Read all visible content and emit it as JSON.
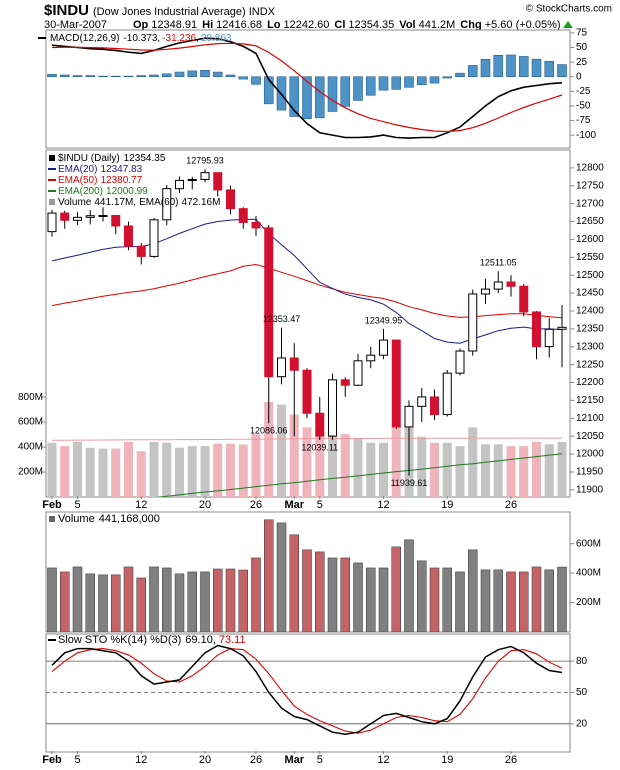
{
  "header": {
    "symbol": "$INDU",
    "name": "(Dow Jones Industrial Average) INDX",
    "date": "30-Mar-2007",
    "quote": [
      [
        "Op",
        "12348.91"
      ],
      [
        "Hi",
        "12416.68"
      ],
      [
        "Lo",
        "12242.60"
      ],
      [
        "Cl",
        "12354.35"
      ],
      [
        "Vol",
        "441.2M"
      ],
      [
        "Chg",
        "+5.60 (+0.05%)"
      ]
    ],
    "credit": "© StockCharts.com"
  },
  "separator": ",",
  "chart_data": [
    {
      "type": "macd",
      "title": "MACD(12,26,9)",
      "ylim": [
        -122,
        80
      ],
      "yticks": [
        -100,
        -75,
        -50,
        -25,
        0,
        25,
        50,
        75
      ],
      "series": [
        {
          "color": "#000000",
          "values": [
            54,
            52,
            50,
            48,
            47,
            45,
            42,
            40,
            45,
            52,
            58,
            62,
            66,
            65,
            60,
            52,
            40,
            -5,
            -30,
            -58,
            -80,
            -96,
            -100,
            -104,
            -104,
            -103,
            -100,
            -104,
            -105,
            -104,
            -104,
            -96,
            -86,
            -68,
            -50,
            -34,
            -24,
            -18,
            -15,
            -12,
            -10.373
          ]
        },
        {
          "color": "#e00000",
          "values": [
            50,
            50.4,
            50.3,
            49.8,
            49.3,
            48.4,
            47.1,
            45.7,
            45.6,
            46.9,
            49.1,
            51.7,
            54.6,
            56.7,
            57.3,
            56.2,
            53,
            41.4,
            27.1,
            10.1,
            -8,
            -25.6,
            -40.5,
            -53.2,
            -63.4,
            -71.3,
            -77,
            -82.4,
            -86.9,
            -90.3,
            -93.1,
            -93.7,
            -92.1,
            -87.3,
            -79.8,
            -70.7,
            -61.3,
            -52.7,
            -45.1,
            -38.5,
            -31.236
          ]
        },
        {
          "color": "#4d93c8",
          "style": "histogram",
          "values": [
            4,
            3,
            2,
            2,
            1,
            1,
            1,
            2,
            3,
            5,
            8,
            10,
            11,
            8,
            3,
            -4,
            -13,
            -46.4,
            -57.1,
            -68.1,
            -72,
            -70.4,
            -59.5,
            -50.8,
            -40.6,
            -31.7,
            -23,
            -21.6,
            -18.1,
            -13.7,
            -10.9,
            -2.3,
            6.1,
            19.3,
            29.8,
            36.7,
            37.3,
            34.7,
            30.1,
            26.5,
            20.863
          ]
        }
      ]
    },
    {
      "type": "candlestick",
      "name": "$INDU (Daily)",
      "categories": [
        "Feb",
        null,
        "5",
        null,
        null,
        null,
        null,
        "12",
        null,
        null,
        null,
        null,
        "20",
        null,
        null,
        null,
        "26",
        null,
        null,
        "Mar",
        null,
        "5",
        null,
        null,
        null,
        null,
        "12",
        null,
        null,
        null,
        null,
        "19",
        null,
        null,
        null,
        null,
        "26",
        null,
        null,
        null,
        null
      ],
      "open": [
        12621.77,
        12673.68,
        12653.49,
        12661.74,
        12666.31,
        12666.87,
        12637.63,
        12580.83,
        12552.55,
        12654.85,
        12741.86,
        12765.01,
        12767.57,
        12786.64,
        12738.41,
        12686.02,
        12647.48,
        12632.26,
        12216.24,
        12268.63,
        12234.34,
        12114.1,
        12050.41,
        12207.59,
        12192.45,
        12260.7,
        12276.32,
        12318.62,
        12075.96,
        12133.4,
        12159.68,
        12110.41,
        12226.17,
        12288.1,
        12447.52,
        12461.14,
        12481.01,
        12469.07,
        12397.29,
        12300.36,
        12348.91
      ],
      "high": [
        12683,
        12680,
        12676,
        12682,
        12690,
        12668,
        12650,
        12590,
        12660,
        12752,
        12776,
        12775,
        12795.93,
        12786,
        12750,
        12690,
        12665,
        12640,
        12353.47,
        12310,
        12240,
        12160,
        12225,
        12215,
        12280,
        12300,
        12349.95,
        12320,
        12150,
        12185,
        12180,
        12235,
        12295,
        12460,
        12490,
        12511.05,
        12500,
        12475,
        12400,
        12380,
        12416.68
      ],
      "low": [
        12608,
        12630,
        12640,
        12642,
        12650,
        12615,
        12570,
        12530,
        12548,
        12640,
        12730,
        12740,
        12760,
        12720,
        12670,
        12630,
        12610,
        12086.06,
        12195,
        12050,
        12100,
        12039.11,
        12040,
        12160,
        12190,
        12240,
        12265,
        12070,
        11939.61,
        12090,
        12095,
        12105,
        12220,
        12275,
        12420,
        12450,
        12440,
        12385,
        12265,
        12270,
        12242.6
      ],
      "close": [
        12673.68,
        12653.49,
        12661.74,
        12666.31,
        12666.87,
        12637.63,
        12580.83,
        12552.55,
        12654.85,
        12741.86,
        12765.01,
        12767.57,
        12786.64,
        12738.41,
        12686.02,
        12647.48,
        12632.26,
        12216.24,
        12268.63,
        12234.34,
        12114.1,
        12050.41,
        12207.59,
        12192.45,
        12260.7,
        12276.32,
        12318.62,
        12075.96,
        12133.4,
        12159.68,
        12110.41,
        12226.17,
        12288.1,
        12447.52,
        12461.14,
        12481.01,
        12469.07,
        12397.29,
        12300.36,
        12348.75,
        12354.35
      ],
      "high_labels": [
        null,
        null,
        null,
        null,
        null,
        null,
        null,
        null,
        null,
        null,
        null,
        null,
        "12795.93",
        null,
        null,
        null,
        null,
        null,
        "12353.47",
        null,
        null,
        null,
        null,
        null,
        null,
        null,
        "12349.95",
        null,
        null,
        null,
        null,
        null,
        null,
        null,
        null,
        "12511.05",
        null,
        null,
        null,
        null,
        null
      ],
      "low_labels": [
        null,
        null,
        null,
        null,
        null,
        null,
        null,
        null,
        null,
        null,
        null,
        null,
        null,
        null,
        null,
        null,
        null,
        "12086.06",
        null,
        null,
        null,
        "12039.11",
        null,
        null,
        null,
        null,
        null,
        null,
        "11939.61",
        null,
        null,
        null,
        null,
        null,
        null,
        null,
        null,
        null,
        null,
        null,
        null
      ],
      "up_color": "#ffffff",
      "down_color": "#d2102f",
      "ylim": [
        11880,
        12850
      ],
      "yticks": [
        11900,
        11950,
        12000,
        12050,
        12100,
        12150,
        12200,
        12250,
        12300,
        12350,
        12400,
        12450,
        12500,
        12550,
        12600,
        12650,
        12700,
        12750,
        12800
      ],
      "overlays": [
        {
          "name": "EMA(20)",
          "color": "#1a1a8c",
          "values": [
            12540,
            12548,
            12556,
            12564,
            12572,
            12578,
            12580,
            12580,
            12588,
            12602,
            12617,
            12630,
            12643,
            12650,
            12654,
            12656,
            12656,
            12616,
            12585,
            12555,
            12518,
            12480,
            12463,
            12447,
            12438,
            12431,
            12419,
            12396,
            12365,
            12345,
            12323,
            12313,
            12310,
            12322,
            12333,
            12345,
            12352,
            12355,
            12350,
            12350,
            12347.83
          ]
        },
        {
          "name": "EMA(50)",
          "color": "#e00000",
          "values": [
            12415,
            12422,
            12428,
            12435,
            12441,
            12447,
            12452,
            12456,
            12462,
            12470,
            12478,
            12487,
            12496,
            12504,
            12512,
            12525,
            12530,
            12520,
            12508,
            12497,
            12485,
            12472,
            12462,
            12452,
            12446,
            12440,
            12435,
            12425,
            12412,
            12403,
            12393,
            12386,
            12382,
            12384,
            12387,
            12390,
            12392,
            12392,
            12388,
            12384,
            12380.77
          ]
        },
        {
          "name": "EMA(200)",
          "color": "#1e7a1e",
          "values": [
            11848,
            11852,
            11856,
            11859,
            11863,
            11867,
            11871,
            11874,
            11878,
            11882,
            11886,
            11890,
            11894,
            11897,
            11901,
            11905,
            11909,
            11913,
            11917,
            11920,
            11924,
            11928,
            11932,
            11935,
            11939,
            11943,
            11947,
            11951,
            11954,
            11958,
            11962,
            11966,
            11970,
            11973,
            11977,
            11981,
            11985,
            11989,
            11993,
            11997,
            12000.99
          ]
        }
      ],
      "volume": {
        "name": "Volume",
        "legend_value": "441.17M",
        "up_color": "#c4c4c4",
        "down_color": "#f0b4bc",
        "ema": {
          "name": "EMA(60)",
          "legend_value": "472.16M",
          "color": "#f09aa6",
          "values": [
            455,
            455,
            456,
            456,
            457,
            457,
            458,
            458,
            459,
            459,
            460,
            460,
            461,
            461,
            462,
            462,
            463,
            464,
            465,
            466,
            467,
            468,
            468,
            469,
            469,
            469,
            470,
            470,
            471,
            471,
            471,
            471,
            471,
            472,
            472,
            472,
            472,
            472,
            472,
            472,
            472.16
          ]
        }
      },
      "y2lim": [
        0,
        2780
      ],
      "y2ticks": [
        {
          "value": 200,
          "label": "200M"
        },
        {
          "value": 400,
          "label": "400M"
        },
        {
          "value": 600,
          "label": "600M"
        },
        {
          "value": 800,
          "label": "800M"
        }
      ]
    },
    {
      "type": "bar",
      "name": "Volume",
      "legend_value": "441,168,000",
      "up_color": "#808080",
      "down_color": "#c46468",
      "values": [
        435,
        408,
        442,
        395,
        388,
        388,
        442,
        367,
        442,
        435,
        395,
        408,
        408,
        428,
        428,
        421,
        503,
        762,
        741,
        660,
        558,
        544,
        503,
        503,
        469,
        435,
        435,
        578,
        626,
        483,
        435,
        435,
        408,
        558,
        422,
        422,
        408,
        408,
        442,
        422,
        441.168
      ],
      "ylim": [
        0,
        815
      ],
      "yticks": [
        {
          "value": 200,
          "label": "200M"
        },
        {
          "value": 400,
          "label": "400M"
        },
        {
          "value": 600,
          "label": "600M"
        }
      ]
    },
    {
      "type": "line",
      "title": "Slow STO %K(14) %D(3)",
      "ylim": [
        -7,
        106
      ],
      "yticks": [
        20,
        50,
        80
      ],
      "grid": true,
      "series": [
        {
          "color": "#000000",
          "legend_value": "69.10",
          "values": [
            76,
            88,
            92,
            92,
            90,
            88,
            80,
            66,
            58,
            60,
            62,
            75,
            88,
            95,
            92,
            85,
            70,
            50,
            35,
            27,
            24,
            18,
            12,
            10,
            12,
            20,
            28,
            30,
            26,
            22,
            20,
            25,
            42,
            65,
            84,
            91,
            94,
            88,
            78,
            71,
            69.1
          ]
        },
        {
          "color": "#e00000",
          "values": [
            70,
            80,
            88,
            91,
            92,
            90,
            86,
            78,
            68,
            61,
            60,
            66,
            75,
            86,
            92,
            91,
            82,
            68,
            52,
            37,
            29,
            23,
            18,
            13,
            11,
            14,
            20,
            26,
            28,
            26,
            23,
            22,
            29,
            44,
            64,
            80,
            90,
            91,
            87,
            79,
            73.11
          ]
        }
      ]
    }
  ]
}
